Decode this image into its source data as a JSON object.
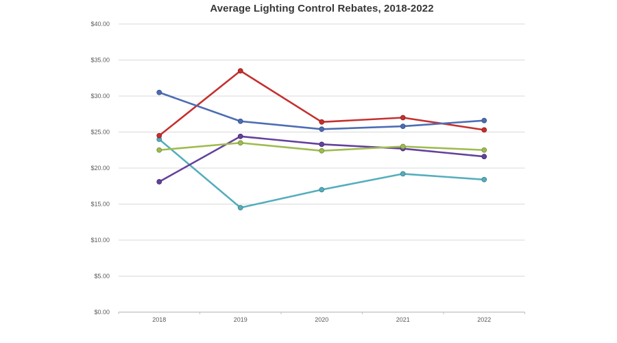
{
  "title": "Average Lighting Control Rebates, 2018-2022",
  "chart_data": {
    "type": "line",
    "title": "Average Lighting Control Rebates, 2018-2022",
    "xlabel": "",
    "ylabel": "",
    "categories": [
      "2018",
      "2019",
      "2020",
      "2021",
      "2022"
    ],
    "series": [
      {
        "name": "series-blue",
        "color": "#4d6cb3",
        "marker_border": "#3b5489",
        "values": [
          30.5,
          26.5,
          25.4,
          25.8,
          26.6
        ]
      },
      {
        "name": "series-red",
        "color": "#c4302e",
        "marker_border": "#962423",
        "values": [
          24.5,
          33.5,
          26.4,
          27.0,
          25.3
        ]
      },
      {
        "name": "series-green",
        "color": "#9fbb50",
        "marker_border": "#7d9440",
        "values": [
          22.5,
          23.5,
          22.4,
          23.0,
          22.5
        ]
      },
      {
        "name": "series-purple",
        "color": "#64419b",
        "marker_border": "#4c3175",
        "values": [
          18.1,
          24.4,
          23.3,
          22.7,
          21.6
        ]
      },
      {
        "name": "series-teal",
        "color": "#54aebc",
        "marker_border": "#418795",
        "values": [
          24.0,
          14.5,
          17.0,
          19.2,
          18.4
        ]
      }
    ],
    "draw_order": [
      "series-teal",
      "series-purple",
      "series-green",
      "series-red",
      "series-blue"
    ],
    "ylim": [
      0,
      40
    ],
    "ytick_step": 5,
    "ytick_labels": [
      "$0.00",
      "$5.00",
      "$10.00",
      "$15.00",
      "$20.00",
      "$25.00",
      "$30.00",
      "$35.00",
      "$40.00"
    ],
    "grid": true,
    "legend_position": "none",
    "gridline_color": "#d9d9d9",
    "axis_line_color": "#bfbfbf",
    "tick_label_color": "#595959",
    "title_color": "#383838",
    "background_color": "#ffffff"
  }
}
